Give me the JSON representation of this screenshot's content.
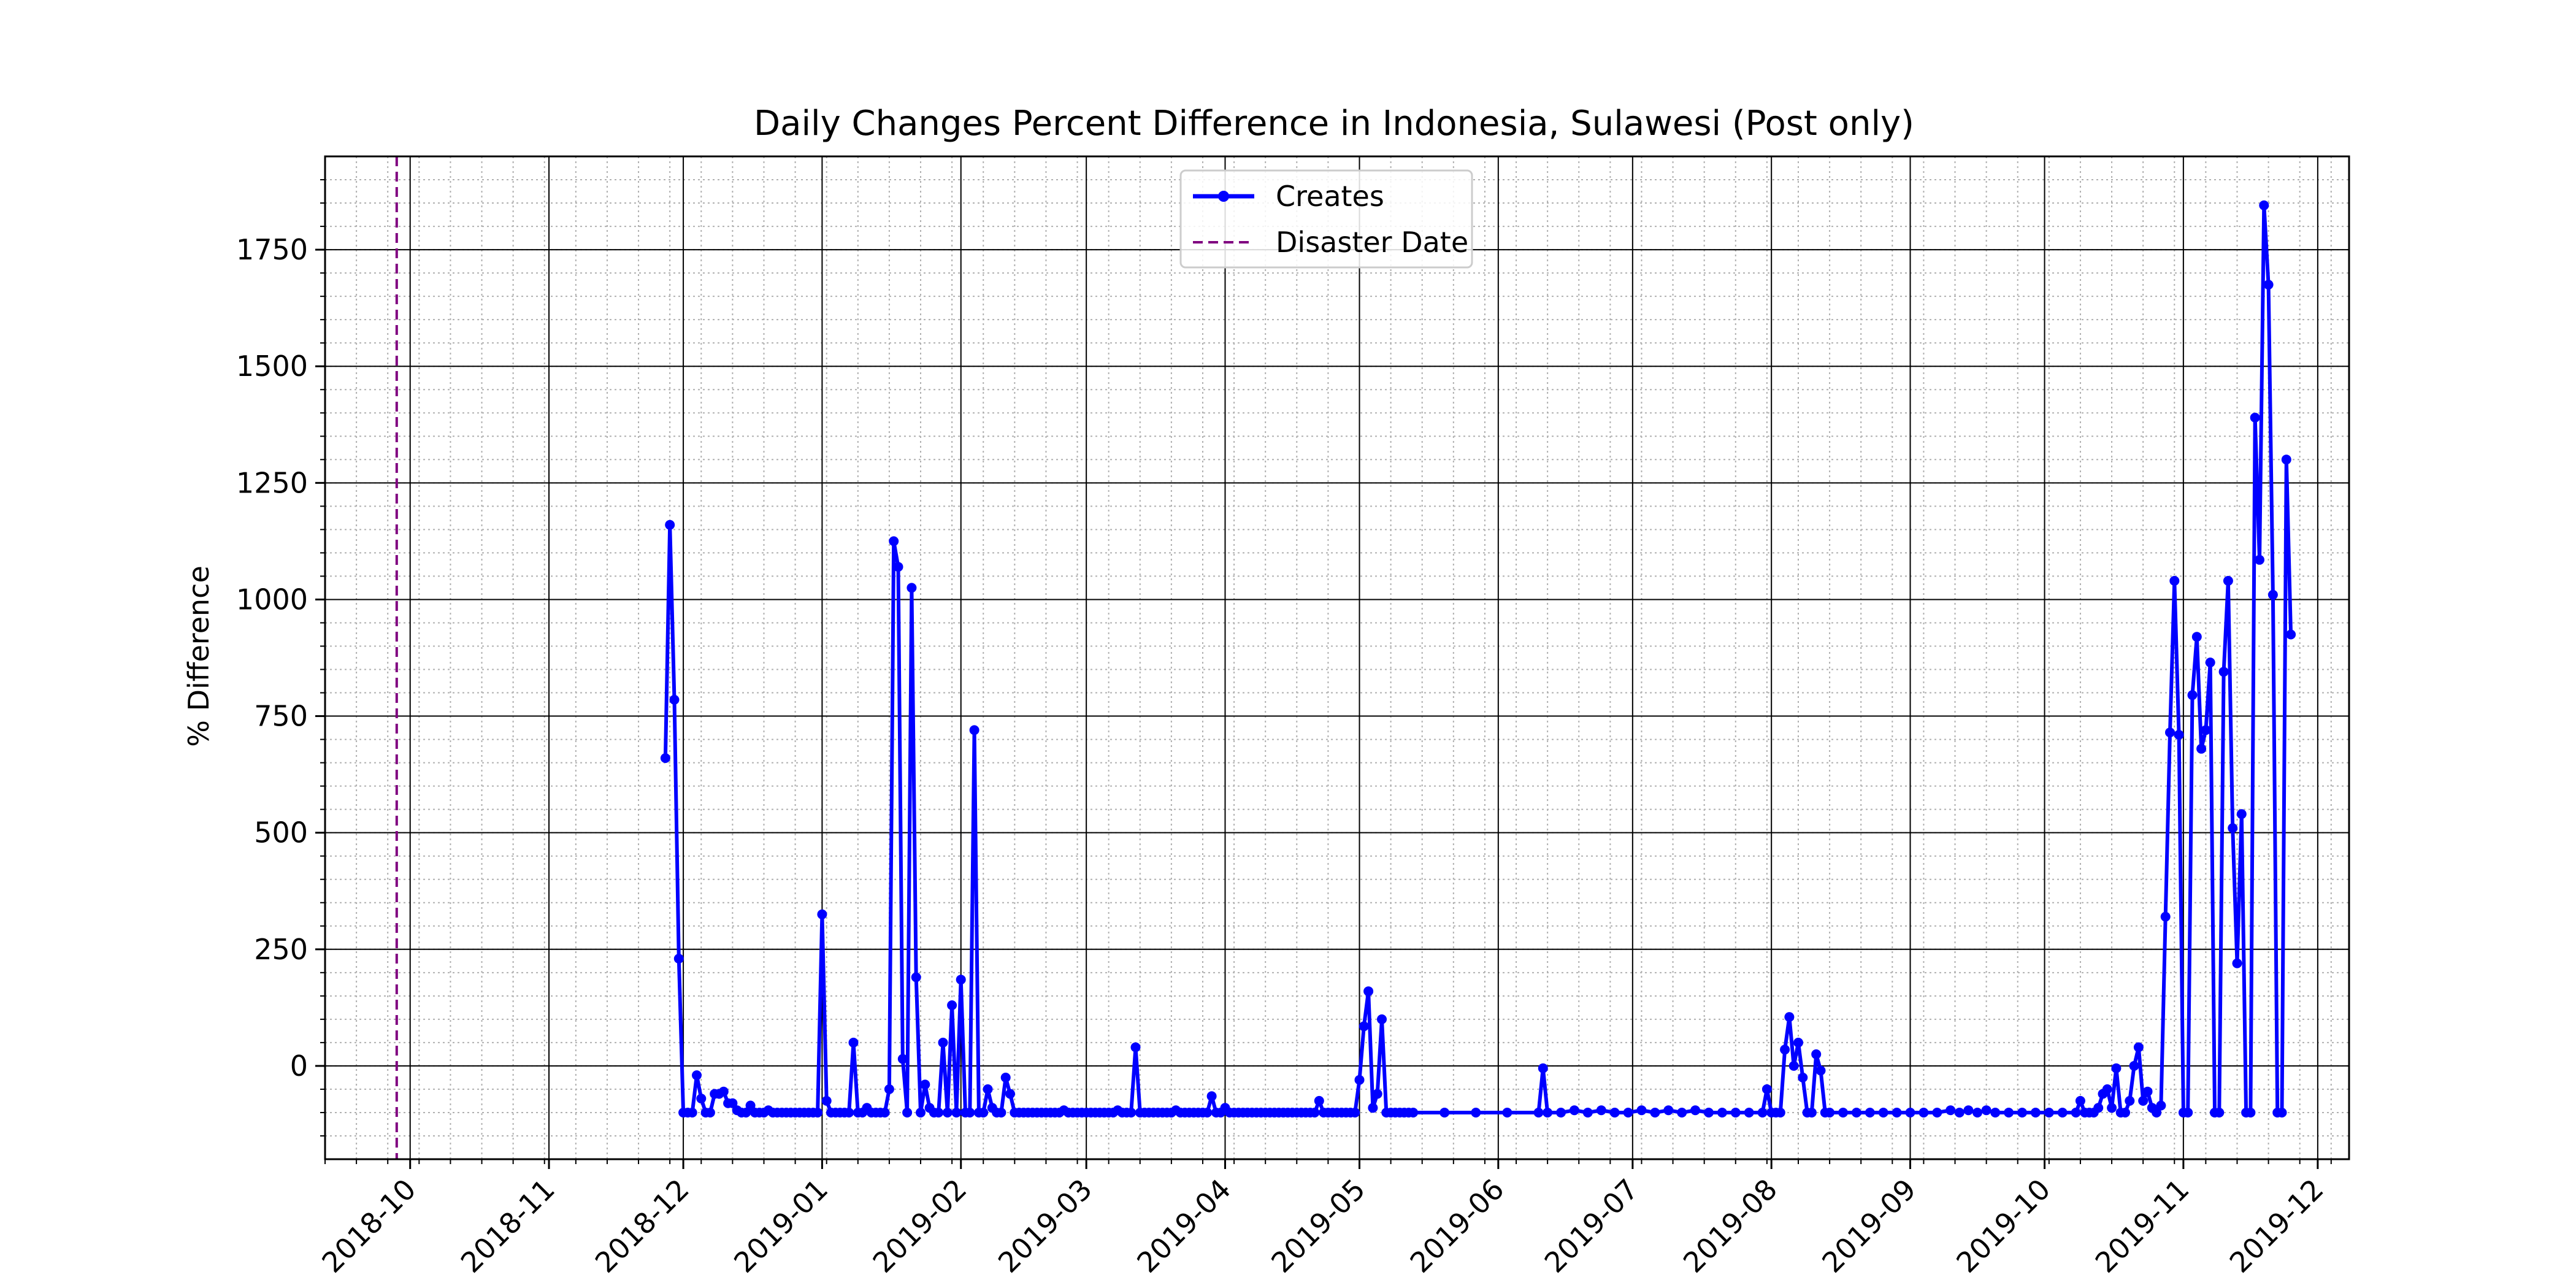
{
  "chart_data": {
    "type": "line",
    "title": "Daily Changes Percent Difference in Indonesia, Sulawesi (Post only)",
    "xlabel": "",
    "ylabel": "% Difference",
    "xlim": [
      "2018-09-12",
      "2019-12-08"
    ],
    "ylim": [
      -200,
      1950
    ],
    "x_ticks": [
      "2018-10",
      "2018-11",
      "2018-12",
      "2019-01",
      "2019-02",
      "2019-03",
      "2019-04",
      "2019-05",
      "2019-06",
      "2019-07",
      "2019-08",
      "2019-09",
      "2019-10",
      "2019-11",
      "2019-12"
    ],
    "y_ticks": [
      "0",
      "250",
      "500",
      "750",
      "1000",
      "1250",
      "1500",
      "1750"
    ],
    "grid": true,
    "legend_position": "top-center",
    "series": [
      {
        "name": "Creates",
        "color": "#0000ff",
        "marker": "circle",
        "points": [
          [
            "2018-11-27",
            660
          ],
          [
            "2018-11-28",
            1160
          ],
          [
            "2018-11-29",
            785
          ],
          [
            "2018-11-30",
            230
          ],
          [
            "2018-12-01",
            -100
          ],
          [
            "2018-12-02",
            -100
          ],
          [
            "2018-12-03",
            -100
          ],
          [
            "2018-12-04",
            -20
          ],
          [
            "2018-12-05",
            -70
          ],
          [
            "2018-12-06",
            -100
          ],
          [
            "2018-12-07",
            -100
          ],
          [
            "2018-12-08",
            -60
          ],
          [
            "2018-12-09",
            -60
          ],
          [
            "2018-12-10",
            -55
          ],
          [
            "2018-12-11",
            -80
          ],
          [
            "2018-12-12",
            -80
          ],
          [
            "2018-12-13",
            -95
          ],
          [
            "2018-12-14",
            -100
          ],
          [
            "2018-12-15",
            -100
          ],
          [
            "2018-12-16",
            -85
          ],
          [
            "2018-12-17",
            -100
          ],
          [
            "2018-12-18",
            -100
          ],
          [
            "2018-12-19",
            -100
          ],
          [
            "2018-12-20",
            -95
          ],
          [
            "2018-12-21",
            -100
          ],
          [
            "2018-12-22",
            -100
          ],
          [
            "2018-12-23",
            -100
          ],
          [
            "2018-12-24",
            -100
          ],
          [
            "2018-12-25",
            -100
          ],
          [
            "2018-12-26",
            -100
          ],
          [
            "2018-12-27",
            -100
          ],
          [
            "2018-12-28",
            -100
          ],
          [
            "2018-12-29",
            -100
          ],
          [
            "2018-12-30",
            -100
          ],
          [
            "2018-12-31",
            -100
          ],
          [
            "2019-01-01",
            325
          ],
          [
            "2019-01-02",
            -75
          ],
          [
            "2019-01-03",
            -100
          ],
          [
            "2019-01-04",
            -100
          ],
          [
            "2019-01-05",
            -100
          ],
          [
            "2019-01-06",
            -100
          ],
          [
            "2019-01-07",
            -100
          ],
          [
            "2019-01-08",
            50
          ],
          [
            "2019-01-09",
            -100
          ],
          [
            "2019-01-10",
            -100
          ],
          [
            "2019-01-11",
            -90
          ],
          [
            "2019-01-12",
            -100
          ],
          [
            "2019-01-13",
            -100
          ],
          [
            "2019-01-14",
            -100
          ],
          [
            "2019-01-15",
            -100
          ],
          [
            "2019-01-16",
            -50
          ],
          [
            "2019-01-17",
            1125
          ],
          [
            "2019-01-18",
            1070
          ],
          [
            "2019-01-19",
            15
          ],
          [
            "2019-01-20",
            -100
          ],
          [
            "2019-01-21",
            1025
          ],
          [
            "2019-01-22",
            190
          ],
          [
            "2019-01-23",
            -100
          ],
          [
            "2019-01-24",
            -40
          ],
          [
            "2019-01-25",
            -90
          ],
          [
            "2019-01-26",
            -100
          ],
          [
            "2019-01-27",
            -100
          ],
          [
            "2019-01-28",
            50
          ],
          [
            "2019-01-29",
            -100
          ],
          [
            "2019-01-30",
            130
          ],
          [
            "2019-01-31",
            -100
          ],
          [
            "2019-02-01",
            185
          ],
          [
            "2019-02-02",
            -100
          ],
          [
            "2019-02-03",
            -100
          ],
          [
            "2019-02-04",
            720
          ],
          [
            "2019-02-05",
            -100
          ],
          [
            "2019-02-06",
            -100
          ],
          [
            "2019-02-07",
            -50
          ],
          [
            "2019-02-08",
            -90
          ],
          [
            "2019-02-09",
            -100
          ],
          [
            "2019-02-10",
            -100
          ],
          [
            "2019-02-11",
            -25
          ],
          [
            "2019-02-12",
            -60
          ],
          [
            "2019-02-13",
            -100
          ],
          [
            "2019-02-14",
            -100
          ],
          [
            "2019-02-15",
            -100
          ],
          [
            "2019-02-16",
            -100
          ],
          [
            "2019-02-17",
            -100
          ],
          [
            "2019-02-18",
            -100
          ],
          [
            "2019-02-19",
            -100
          ],
          [
            "2019-02-20",
            -100
          ],
          [
            "2019-02-21",
            -100
          ],
          [
            "2019-02-22",
            -100
          ],
          [
            "2019-02-23",
            -100
          ],
          [
            "2019-02-24",
            -95
          ],
          [
            "2019-02-25",
            -100
          ],
          [
            "2019-02-26",
            -100
          ],
          [
            "2019-02-27",
            -100
          ],
          [
            "2019-02-28",
            -100
          ],
          [
            "2019-03-01",
            -100
          ],
          [
            "2019-03-02",
            -100
          ],
          [
            "2019-03-03",
            -100
          ],
          [
            "2019-03-04",
            -100
          ],
          [
            "2019-03-05",
            -100
          ],
          [
            "2019-03-06",
            -100
          ],
          [
            "2019-03-07",
            -100
          ],
          [
            "2019-03-08",
            -95
          ],
          [
            "2019-03-09",
            -100
          ],
          [
            "2019-03-10",
            -100
          ],
          [
            "2019-03-11",
            -100
          ],
          [
            "2019-03-12",
            40
          ],
          [
            "2019-03-13",
            -100
          ],
          [
            "2019-03-14",
            -100
          ],
          [
            "2019-03-15",
            -100
          ],
          [
            "2019-03-16",
            -100
          ],
          [
            "2019-03-17",
            -100
          ],
          [
            "2019-03-18",
            -100
          ],
          [
            "2019-03-19",
            -100
          ],
          [
            "2019-03-20",
            -100
          ],
          [
            "2019-03-21",
            -95
          ],
          [
            "2019-03-22",
            -100
          ],
          [
            "2019-03-23",
            -100
          ],
          [
            "2019-03-24",
            -100
          ],
          [
            "2019-03-25",
            -100
          ],
          [
            "2019-03-26",
            -100
          ],
          [
            "2019-03-27",
            -100
          ],
          [
            "2019-03-28",
            -100
          ],
          [
            "2019-03-29",
            -65
          ],
          [
            "2019-03-30",
            -100
          ],
          [
            "2019-03-31",
            -100
          ],
          [
            "2019-04-01",
            -90
          ],
          [
            "2019-04-02",
            -100
          ],
          [
            "2019-04-03",
            -100
          ],
          [
            "2019-04-04",
            -100
          ],
          [
            "2019-04-05",
            -100
          ],
          [
            "2019-04-06",
            -100
          ],
          [
            "2019-04-07",
            -100
          ],
          [
            "2019-04-08",
            -100
          ],
          [
            "2019-04-09",
            -100
          ],
          [
            "2019-04-10",
            -100
          ],
          [
            "2019-04-11",
            -100
          ],
          [
            "2019-04-12",
            -100
          ],
          [
            "2019-04-13",
            -100
          ],
          [
            "2019-04-14",
            -100
          ],
          [
            "2019-04-15",
            -100
          ],
          [
            "2019-04-16",
            -100
          ],
          [
            "2019-04-17",
            -100
          ],
          [
            "2019-04-18",
            -100
          ],
          [
            "2019-04-19",
            -100
          ],
          [
            "2019-04-20",
            -100
          ],
          [
            "2019-04-21",
            -100
          ],
          [
            "2019-04-22",
            -75
          ],
          [
            "2019-04-23",
            -100
          ],
          [
            "2019-04-24",
            -100
          ],
          [
            "2019-04-25",
            -100
          ],
          [
            "2019-04-26",
            -100
          ],
          [
            "2019-04-27",
            -100
          ],
          [
            "2019-04-28",
            -100
          ],
          [
            "2019-04-29",
            -100
          ],
          [
            "2019-04-30",
            -100
          ],
          [
            "2019-05-01",
            -30
          ],
          [
            "2019-05-02",
            85
          ],
          [
            "2019-05-03",
            160
          ],
          [
            "2019-05-04",
            -90
          ],
          [
            "2019-05-05",
            -60
          ],
          [
            "2019-05-06",
            100
          ],
          [
            "2019-05-07",
            -100
          ],
          [
            "2019-05-08",
            -100
          ],
          [
            "2019-05-09",
            -100
          ],
          [
            "2019-05-10",
            -100
          ],
          [
            "2019-05-11",
            -100
          ],
          [
            "2019-05-12",
            -100
          ],
          [
            "2019-05-13",
            -100
          ],
          [
            "2019-05-20",
            -100
          ],
          [
            "2019-05-27",
            -100
          ],
          [
            "2019-06-03",
            -100
          ],
          [
            "2019-06-10",
            -100
          ],
          [
            "2019-06-11",
            -5
          ],
          [
            "2019-06-12",
            -100
          ],
          [
            "2019-06-15",
            -100
          ],
          [
            "2019-06-18",
            -95
          ],
          [
            "2019-06-21",
            -100
          ],
          [
            "2019-06-24",
            -95
          ],
          [
            "2019-06-27",
            -100
          ],
          [
            "2019-06-30",
            -100
          ],
          [
            "2019-07-03",
            -95
          ],
          [
            "2019-07-06",
            -100
          ],
          [
            "2019-07-09",
            -95
          ],
          [
            "2019-07-12",
            -100
          ],
          [
            "2019-07-15",
            -95
          ],
          [
            "2019-07-18",
            -100
          ],
          [
            "2019-07-21",
            -100
          ],
          [
            "2019-07-24",
            -100
          ],
          [
            "2019-07-27",
            -100
          ],
          [
            "2019-07-30",
            -100
          ],
          [
            "2019-07-31",
            -50
          ],
          [
            "2019-08-01",
            -100
          ],
          [
            "2019-08-02",
            -100
          ],
          [
            "2019-08-03",
            -100
          ],
          [
            "2019-08-04",
            35
          ],
          [
            "2019-08-05",
            105
          ],
          [
            "2019-08-06",
            0
          ],
          [
            "2019-08-07",
            50
          ],
          [
            "2019-08-08",
            -25
          ],
          [
            "2019-08-09",
            -100
          ],
          [
            "2019-08-10",
            -100
          ],
          [
            "2019-08-11",
            25
          ],
          [
            "2019-08-12",
            -10
          ],
          [
            "2019-08-13",
            -100
          ],
          [
            "2019-08-14",
            -100
          ],
          [
            "2019-08-17",
            -100
          ],
          [
            "2019-08-20",
            -100
          ],
          [
            "2019-08-23",
            -100
          ],
          [
            "2019-08-26",
            -100
          ],
          [
            "2019-08-29",
            -100
          ],
          [
            "2019-09-01",
            -100
          ],
          [
            "2019-09-04",
            -100
          ],
          [
            "2019-09-07",
            -100
          ],
          [
            "2019-09-10",
            -95
          ],
          [
            "2019-09-12",
            -100
          ],
          [
            "2019-09-14",
            -95
          ],
          [
            "2019-09-16",
            -100
          ],
          [
            "2019-09-18",
            -95
          ],
          [
            "2019-09-20",
            -100
          ],
          [
            "2019-09-23",
            -100
          ],
          [
            "2019-09-26",
            -100
          ],
          [
            "2019-09-29",
            -100
          ],
          [
            "2019-10-02",
            -100
          ],
          [
            "2019-10-05",
            -100
          ],
          [
            "2019-10-08",
            -100
          ],
          [
            "2019-10-09",
            -75
          ],
          [
            "2019-10-10",
            -100
          ],
          [
            "2019-10-11",
            -100
          ],
          [
            "2019-10-12",
            -100
          ],
          [
            "2019-10-13",
            -90
          ],
          [
            "2019-10-14",
            -60
          ],
          [
            "2019-10-15",
            -50
          ],
          [
            "2019-10-16",
            -90
          ],
          [
            "2019-10-17",
            -5
          ],
          [
            "2019-10-18",
            -100
          ],
          [
            "2019-10-19",
            -100
          ],
          [
            "2019-10-20",
            -75
          ],
          [
            "2019-10-21",
            0
          ],
          [
            "2019-10-22",
            40
          ],
          [
            "2019-10-23",
            -75
          ],
          [
            "2019-10-24",
            -55
          ],
          [
            "2019-10-25",
            -90
          ],
          [
            "2019-10-26",
            -100
          ],
          [
            "2019-10-27",
            -85
          ],
          [
            "2019-10-28",
            320
          ],
          [
            "2019-10-29",
            715
          ],
          [
            "2019-10-30",
            1040
          ],
          [
            "2019-10-31",
            710
          ],
          [
            "2019-11-01",
            -100
          ],
          [
            "2019-11-02",
            -100
          ],
          [
            "2019-11-03",
            795
          ],
          [
            "2019-11-04",
            920
          ],
          [
            "2019-11-05",
            680
          ],
          [
            "2019-11-06",
            720
          ],
          [
            "2019-11-07",
            865
          ],
          [
            "2019-11-08",
            -100
          ],
          [
            "2019-11-09",
            -100
          ],
          [
            "2019-11-10",
            845
          ],
          [
            "2019-11-11",
            1040
          ],
          [
            "2019-11-12",
            510
          ],
          [
            "2019-11-13",
            220
          ],
          [
            "2019-11-14",
            540
          ],
          [
            "2019-11-15",
            -100
          ],
          [
            "2019-11-16",
            -100
          ],
          [
            "2019-11-17",
            1390
          ],
          [
            "2019-11-18",
            1085
          ],
          [
            "2019-11-19",
            1845
          ],
          [
            "2019-11-20",
            1675
          ],
          [
            "2019-11-21",
            1010
          ],
          [
            "2019-11-22",
            -100
          ],
          [
            "2019-11-23",
            -100
          ],
          [
            "2019-11-24",
            1300
          ],
          [
            "2019-11-25",
            925
          ]
        ]
      },
      {
        "name": "Disaster Date",
        "color": "#800080",
        "style": "dashed",
        "x": "2018-09-28"
      }
    ]
  }
}
